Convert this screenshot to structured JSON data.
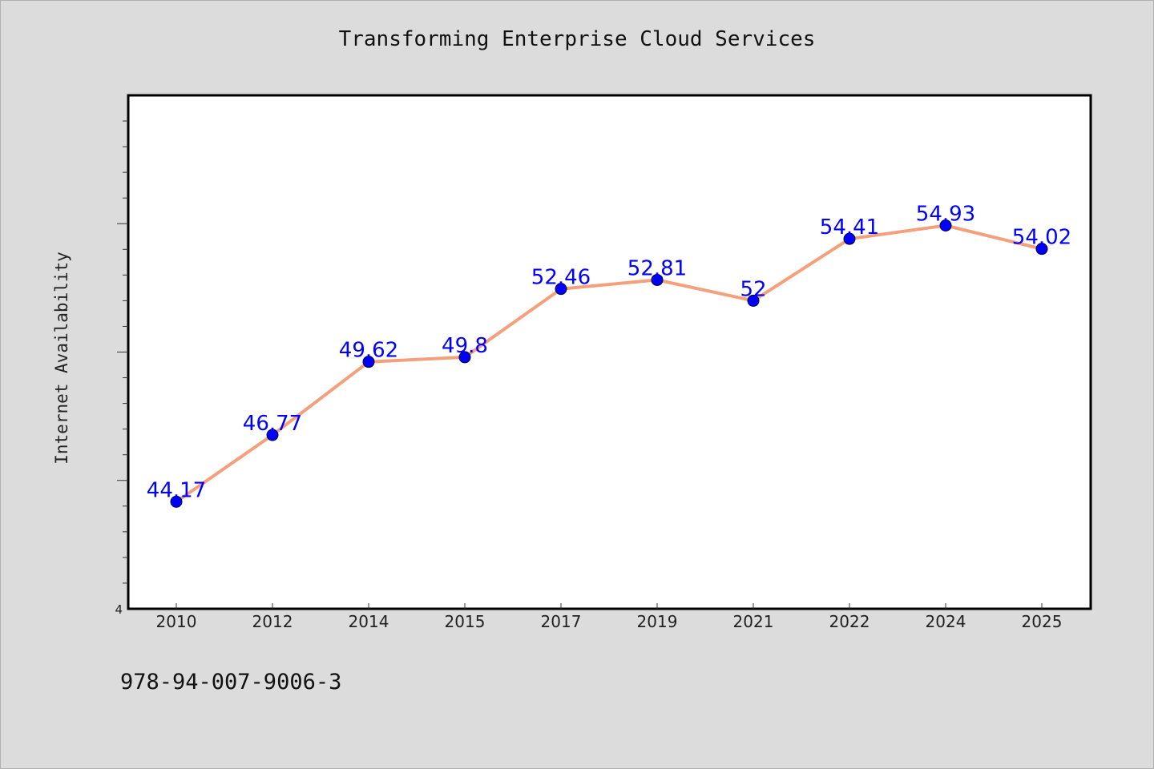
{
  "chart_data": {
    "type": "line",
    "title": "Transforming Enterprise Cloud Services",
    "xlabel": "",
    "ylabel": "Internet Availability",
    "categories": [
      "2010",
      "2012",
      "2014",
      "2015",
      "2017",
      "2019",
      "2021",
      "2022",
      "2024",
      "2025"
    ],
    "series": [
      {
        "values": [
          44.17,
          46.77,
          49.62,
          49.8,
          52.46,
          52.81,
          52,
          54.41,
          54.93,
          54.02
        ]
      }
    ],
    "data_labels": [
      "44.17",
      "46.77",
      "49.62",
      "49.8",
      "52.46",
      "52.81",
      "52",
      "54.41",
      "54.93",
      "54.02"
    ],
    "ylim": [
      40,
      60
    ],
    "y_tick_labels": [
      "4"
    ],
    "grid": false,
    "line_color": "#f4a07c",
    "marker_color": "#0000ff",
    "label_color": "#0000ff"
  },
  "footer": {
    "code": "978-94-007-9006-3"
  }
}
